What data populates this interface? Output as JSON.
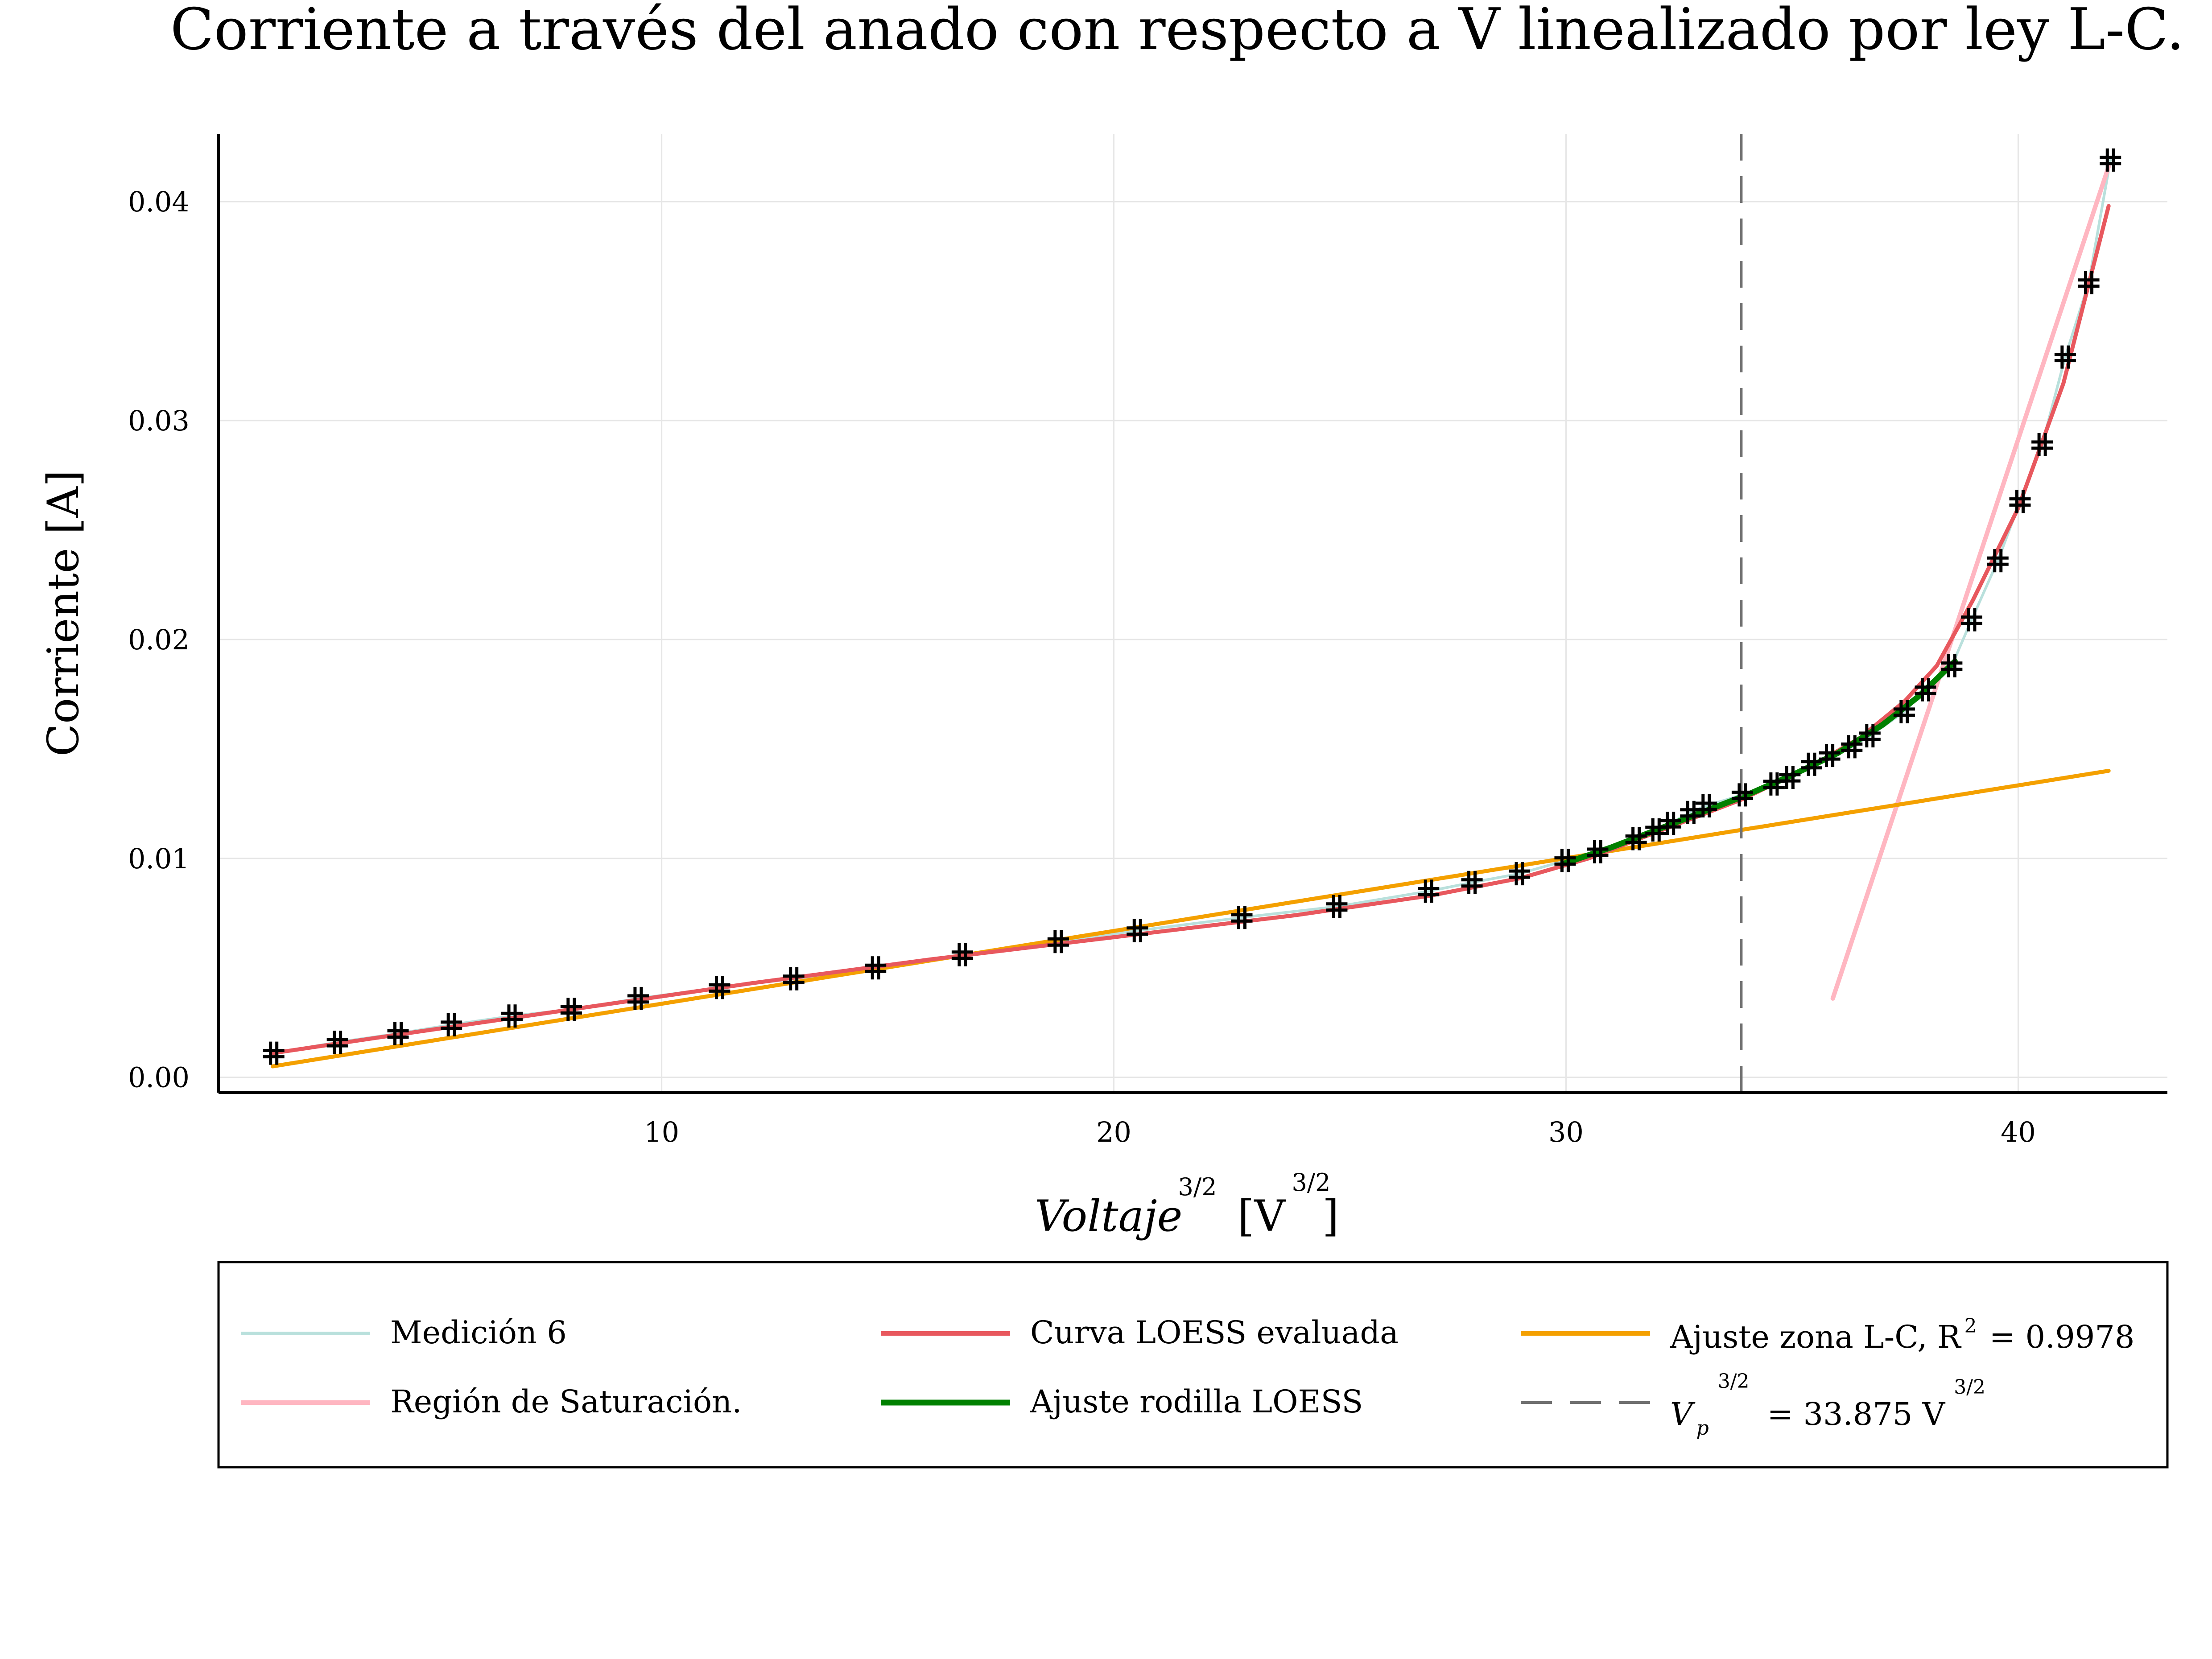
{
  "chart_data": {
    "type": "line",
    "title": "Corriente a través del anado con respecto a V linealizado por ley L-C.",
    "xlabel": {
      "base": "Voltaje",
      "exp": "3/2",
      "unit": "[V",
      "unit_exp": "3/2",
      "close": "]"
    },
    "ylabel": "Corriente [A]",
    "xlim": [
      0.2,
      43.3
    ],
    "ylim": [
      -0.0007,
      0.0431
    ],
    "xticks": [
      10,
      20,
      30,
      40
    ],
    "yticks": [
      0.0,
      0.01,
      0.02,
      0.03,
      0.04
    ],
    "xtick_labels": [
      "10",
      "20",
      "30",
      "40"
    ],
    "ytick_labels": [
      "0.00",
      "0.01",
      "0.02",
      "0.03",
      "0.04"
    ],
    "grid": true,
    "legend_position": "bottom",
    "series": [
      {
        "name": "Medición 6",
        "kind": "line+markers",
        "color": "#b9e0dc",
        "marker": "+",
        "marker_color": "#000000",
        "x": [
          1.42,
          2.83,
          4.17,
          5.35,
          6.69,
          8.0,
          9.48,
          11.28,
          12.92,
          14.73,
          16.65,
          18.77,
          20.52,
          22.83,
          24.93,
          26.96,
          27.92,
          28.97,
          29.98,
          30.7,
          31.55,
          31.99,
          32.31,
          32.76,
          33.1,
          33.9,
          34.6,
          34.95,
          35.43,
          35.83,
          36.32,
          36.72,
          37.48,
          37.95,
          38.53,
          38.97,
          39.55,
          40.04,
          40.53,
          41.04,
          41.56,
          42.04
        ],
        "y": [
          0.0011,
          0.0016,
          0.002,
          0.0024,
          0.0028,
          0.0031,
          0.0036,
          0.0041,
          0.0045,
          0.005,
          0.0056,
          0.0062,
          0.0067,
          0.0073,
          0.0078,
          0.0085,
          0.0089,
          0.0093,
          0.0099,
          0.0103,
          0.0109,
          0.0113,
          0.0116,
          0.0121,
          0.0124,
          0.0129,
          0.0134,
          0.0137,
          0.0143,
          0.0147,
          0.0151,
          0.0156,
          0.0167,
          0.0177,
          0.0188,
          0.0209,
          0.0236,
          0.0263,
          0.0289,
          0.0329,
          0.0363,
          0.0419
        ]
      },
      {
        "name": "Región de Saturación.",
        "kind": "line",
        "color": "#ffb6c1",
        "x": [
          35.9,
          42.0
        ],
        "y": [
          0.0036,
          0.0416
        ]
      },
      {
        "name": "Curva LOESS evaluada",
        "kind": "line",
        "color": "#e8585e",
        "x": [
          1.4,
          4.0,
          8.0,
          12.0,
          16.0,
          20.0,
          24.0,
          27.0,
          29.0,
          30.5,
          32.0,
          33.9,
          35.5,
          36.5,
          37.5,
          38.2,
          39.0,
          40.0,
          41.0,
          42.0
        ],
        "y": [
          0.0011,
          0.0019,
          0.0031,
          0.0043,
          0.0054,
          0.0064,
          0.0074,
          0.0083,
          0.0091,
          0.01,
          0.0112,
          0.0127,
          0.0143,
          0.0155,
          0.0172,
          0.0188,
          0.0218,
          0.026,
          0.0317,
          0.0398
        ]
      },
      {
        "name": "Ajuste rodilla LOESS",
        "kind": "line",
        "color": "#008000",
        "x": [
          30.0,
          31.0,
          32.0,
          33.0,
          34.0,
          35.0,
          36.0,
          37.0,
          37.8,
          38.6
        ],
        "y": [
          0.0098,
          0.0105,
          0.0113,
          0.0121,
          0.0129,
          0.0138,
          0.0148,
          0.0161,
          0.0174,
          0.019
        ]
      },
      {
        "name": "Ajuste zona L-C, R² = 0.9978",
        "legend_text": "Ajuste zona L-C, R",
        "legend_sup": "2",
        "legend_tail": "= 0.9978",
        "kind": "line",
        "color": "#f4a000",
        "x": [
          1.4,
          42.0
        ],
        "y": [
          0.0005,
          0.014
        ]
      },
      {
        "name": "V_p^(3/2) = 33.875 V^(3/2)",
        "legend_main": "V",
        "legend_sub": "p",
        "legend_exp": "3/2",
        "legend_tail": "= 33.875 V",
        "legend_tail_exp": "3/2",
        "kind": "vline",
        "color": "#707070",
        "dash": true,
        "x": [
          33.875
        ]
      }
    ]
  }
}
